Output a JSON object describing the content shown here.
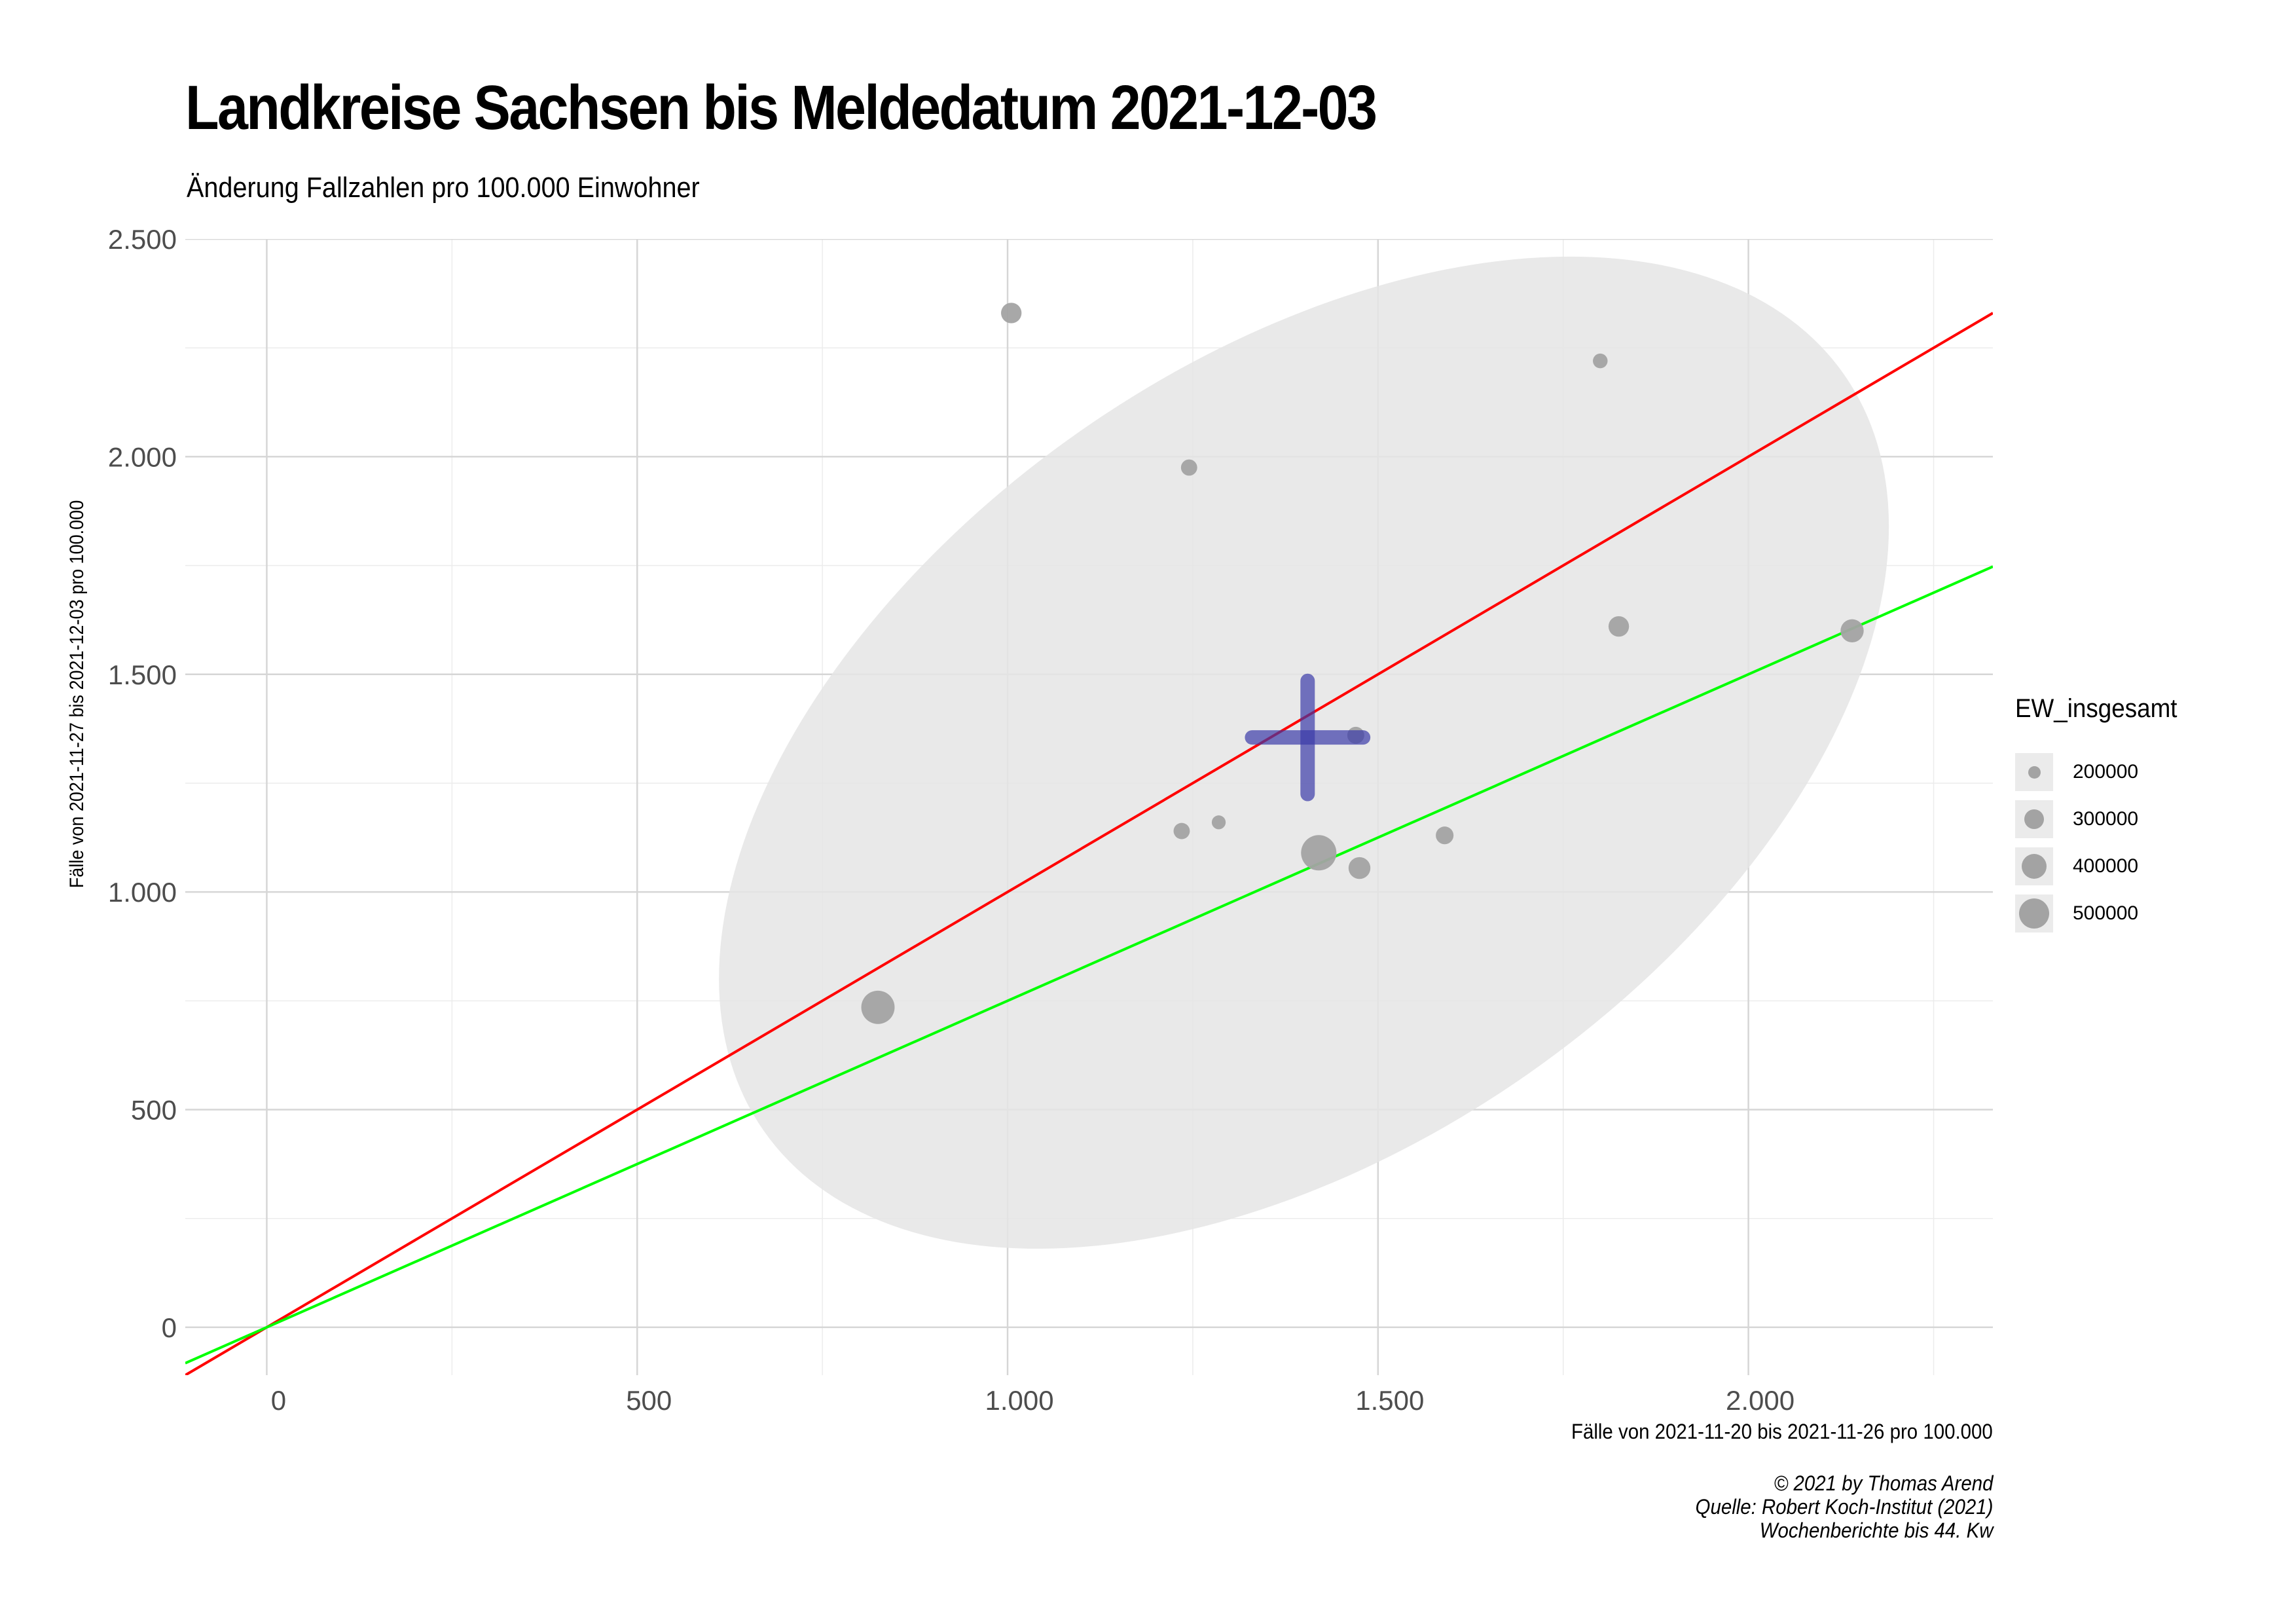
{
  "chart_data": {
    "type": "scatter",
    "title": "Landkreise Sachsen bis Meldedatum 2021-12-03",
    "subtitle": "Änderung Fallzahlen pro 100.000 Einwohner",
    "xlabel": "Fälle von 2021-11-20 bis 2021-11-26 pro 100.000",
    "ylabel": "Fälle von 2021-11-27 bis 2021-12-03 pro 100.000",
    "xlim": [
      -110,
      2330
    ],
    "ylim": [
      -110,
      2500
    ],
    "xticks": [
      0,
      500,
      1000,
      1500,
      2000
    ],
    "xtick_labels": [
      "0",
      "500",
      "1.000",
      "1.500",
      "2.000"
    ],
    "yticks": [
      0,
      500,
      1000,
      1500,
      2000,
      2500
    ],
    "ytick_labels": [
      "0",
      "500",
      "1.000",
      "1.500",
      "2.000",
      "2.500"
    ],
    "grid": true,
    "points": [
      {
        "x": 1005,
        "y": 2330,
        "size": 300000
      },
      {
        "x": 1245,
        "y": 1975,
        "size": 240000
      },
      {
        "x": 1800,
        "y": 2220,
        "size": 220000
      },
      {
        "x": 1825,
        "y": 1610,
        "size": 300000
      },
      {
        "x": 2140,
        "y": 1600,
        "size": 340000
      },
      {
        "x": 1470,
        "y": 1360,
        "size": 250000
      },
      {
        "x": 1235,
        "y": 1140,
        "size": 240000
      },
      {
        "x": 1285,
        "y": 1160,
        "size": 210000
      },
      {
        "x": 1420,
        "y": 1090,
        "size": 560000
      },
      {
        "x": 1475,
        "y": 1055,
        "size": 320000
      },
      {
        "x": 1590,
        "y": 1130,
        "size": 260000
      },
      {
        "x": 825,
        "y": 735,
        "size": 520000
      }
    ],
    "mean_cross": {
      "x": 1405,
      "y": 1355,
      "x_range": [
        1330,
        1480
      ],
      "y_range": [
        1225,
        1485
      ],
      "color": "#3a3aa8"
    },
    "ellipse": {
      "cx": 1400,
      "cy": 1320,
      "rx": 890,
      "ry": 1000,
      "rotation_deg": 35,
      "color": "#e5e5e5"
    },
    "reference_lines": [
      {
        "slope": 1,
        "intercept": 0,
        "color": "#ff0000"
      },
      {
        "slope": 0.75,
        "intercept": 0,
        "color": "#00ff00"
      }
    ],
    "legend": {
      "title": "EW_insgesamt",
      "placement": "right",
      "items": [
        {
          "label": "200000",
          "size": 200000
        },
        {
          "label": "300000",
          "size": 300000
        },
        {
          "label": "400000",
          "size": 400000
        },
        {
          "label": "500000",
          "size": 500000
        }
      ]
    },
    "point_color": "#a3a3a3"
  },
  "caption": {
    "line1": "© 2021 by Thomas Arend",
    "line2": "Quelle: Robert Koch-Institut (2021)",
    "line3": "Wochenberichte bis 44. Kw"
  }
}
